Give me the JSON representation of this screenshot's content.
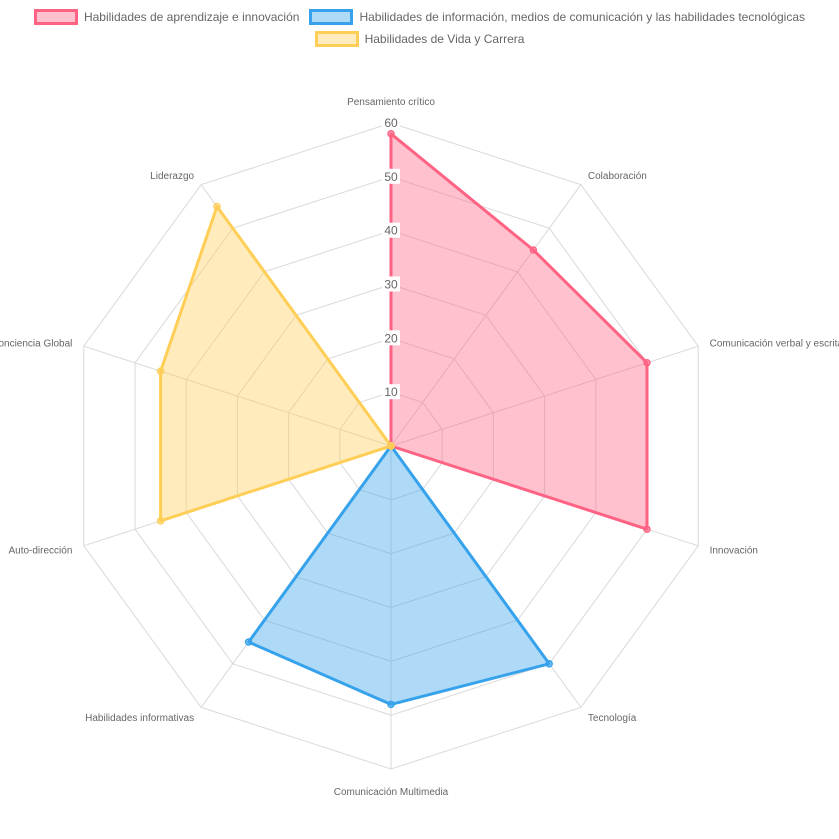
{
  "chart_data": {
    "type": "radar",
    "labels": [
      "Pensamiento crítico",
      "Colaboración",
      "Comunicación verbal y escrita",
      "Innovación",
      "Tecnología",
      "Comunicación Multimedia",
      "Habilidades informativas",
      "Auto-dirección",
      "Conciencia Global",
      "Liderazgo"
    ],
    "r_ticks": [
      "10",
      "20",
      "30",
      "40",
      "50",
      "60"
    ],
    "r_range": [
      0,
      60
    ],
    "series": [
      {
        "name": "Habilidades de aprendizaje e innovación",
        "values": [
          58,
          45,
          50,
          50,
          0,
          0,
          0,
          0,
          0,
          0
        ],
        "border": "#ff6384",
        "fill": "rgba(255,99,132,0.4)"
      },
      {
        "name": "Habilidades de información, medios de comunicación y las habilidades tecnológicas",
        "values": [
          0,
          0,
          0,
          0,
          50,
          48,
          45,
          0,
          0,
          0
        ],
        "border": "#36a2eb",
        "fill": "rgba(54,162,235,0.4)"
      },
      {
        "name": "Habilidades de Vida y Carrera",
        "values": [
          0,
          0,
          0,
          0,
          0,
          0,
          0,
          45,
          45,
          55
        ],
        "border": "#ffce56",
        "fill": "rgba(255,206,86,0.4)"
      }
    ]
  }
}
